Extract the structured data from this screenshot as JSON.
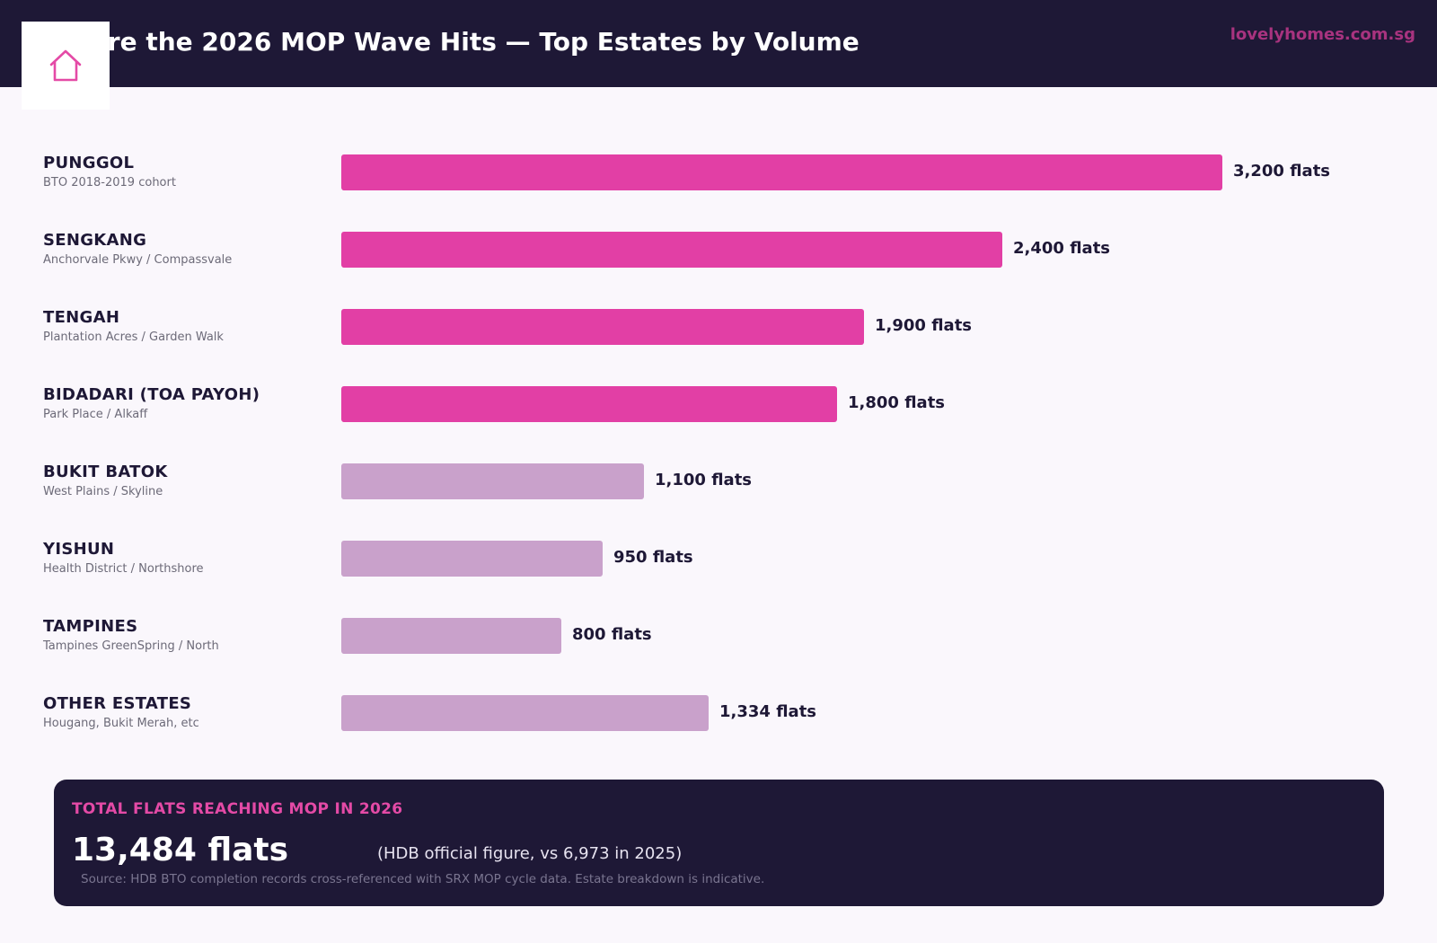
{
  "header": {
    "title": "Where the 2026 MOP Wave Hits — Top Estates by Volume",
    "brand": "lovelyhomes.com.sg",
    "logo_icon": "house-icon"
  },
  "colors": {
    "header_bg": "#1e1836",
    "highlight_bar": "#e23fa5",
    "muted_bar": "#c9a1cb",
    "brand": "#a8337f",
    "accent": "#e44aa6"
  },
  "chart_data": {
    "type": "bar",
    "orientation": "horizontal",
    "title": "Where the 2026 MOP Wave Hits — Top Estates by Volume",
    "categories": [
      "PUNGGOL",
      "SENGKANG",
      "TENGAH",
      "BIDADARI (TOA PAYOH)",
      "BUKIT BATOK",
      "YISHUN",
      "TAMPINES",
      "OTHER ESTATES"
    ],
    "subtitles": [
      "BTO 2018-2019 cohort",
      "Anchorvale Pkwy / Compassvale",
      "Plantation Acres / Garden Walk",
      "Park Place / Alkaff",
      "West Plains / Skyline",
      "Health District / Northshore",
      "Tampines GreenSpring / North",
      "Hougang, Bukit Merah, etc"
    ],
    "values": [
      3200,
      2400,
      1900,
      1800,
      1100,
      950,
      800,
      1334
    ],
    "value_labels": [
      "3,200 flats",
      "2,400 flats",
      "1,900 flats",
      "1,800 flats",
      "1,100 flats",
      "950 flats",
      "800 flats",
      "1,334 flats"
    ],
    "highlighted": [
      true,
      true,
      true,
      true,
      false,
      false,
      false,
      false
    ],
    "xlim": [
      0,
      3200
    ],
    "grid": false,
    "legend": "none"
  },
  "summary": {
    "label": "TOTAL FLATS REACHING MOP IN 2026",
    "value": "13,484 flats",
    "note": "(HDB official figure, vs 6,973 in 2025)",
    "source": "Source: HDB BTO completion records cross-referenced with SRX MOP cycle data. Estate breakdown is indicative."
  }
}
